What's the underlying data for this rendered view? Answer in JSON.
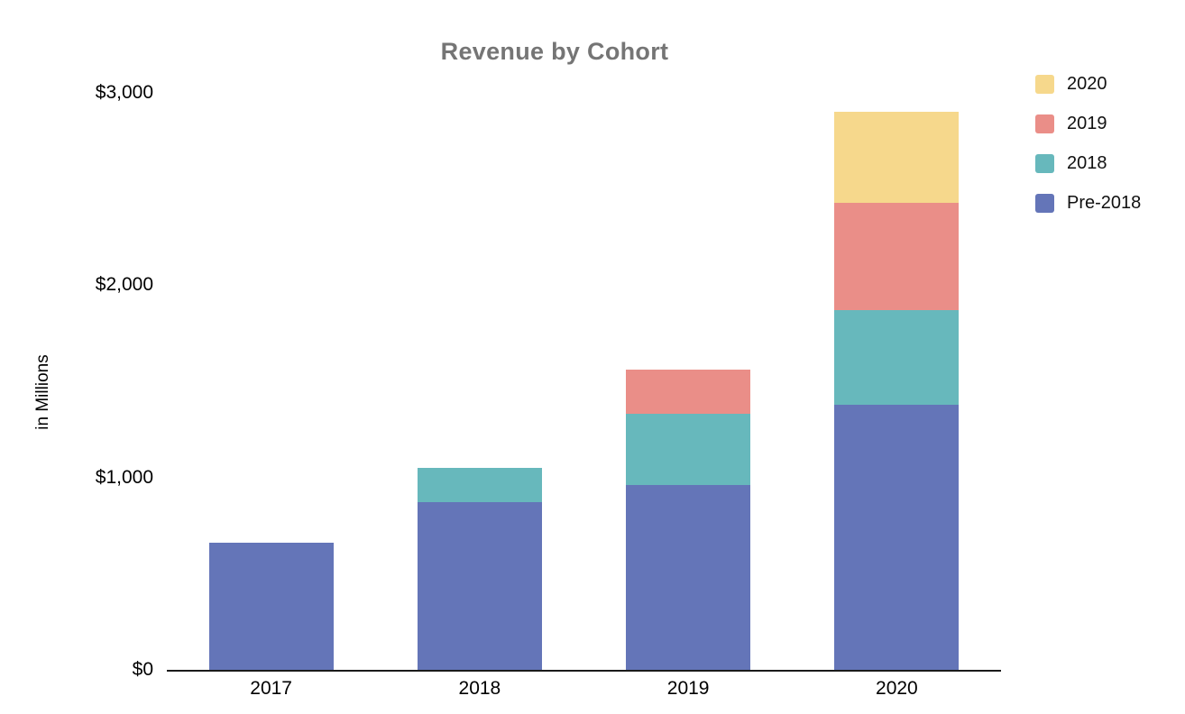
{
  "chart_data": {
    "type": "bar",
    "stacked": true,
    "title": "Revenue by Cohort",
    "xlabel": "",
    "ylabel": "in Millions",
    "categories": [
      "2017",
      "2018",
      "2019",
      "2020"
    ],
    "series": [
      {
        "name": "Pre-2018",
        "color": "#6475b8",
        "values": [
          660,
          870,
          960,
          1380
        ]
      },
      {
        "name": "2018",
        "color": "#67b8bc",
        "values": [
          0,
          180,
          370,
          490
        ]
      },
      {
        "name": "2019",
        "color": "#ea8e88",
        "values": [
          0,
          0,
          230,
          560
        ]
      },
      {
        "name": "2020",
        "color": "#f6d88c",
        "values": [
          0,
          0,
          0,
          470
        ]
      }
    ],
    "totals": [
      660,
      1050,
      1560,
      2900
    ],
    "ylim": [
      0,
      3000
    ],
    "yticks": [
      {
        "value": 0,
        "label": "$0"
      },
      {
        "value": 1000,
        "label": "$1,000"
      },
      {
        "value": 2000,
        "label": "$2,000"
      },
      {
        "value": 3000,
        "label": "$3,000"
      }
    ],
    "grid": false,
    "legend_position": "top-right",
    "legend_order_top_to_bottom": [
      "2020",
      "2019",
      "2018",
      "Pre-2018"
    ],
    "colors": {
      "title_text": "#757575",
      "axis_line": "#1a1a1a",
      "background": "#ffffff"
    }
  }
}
